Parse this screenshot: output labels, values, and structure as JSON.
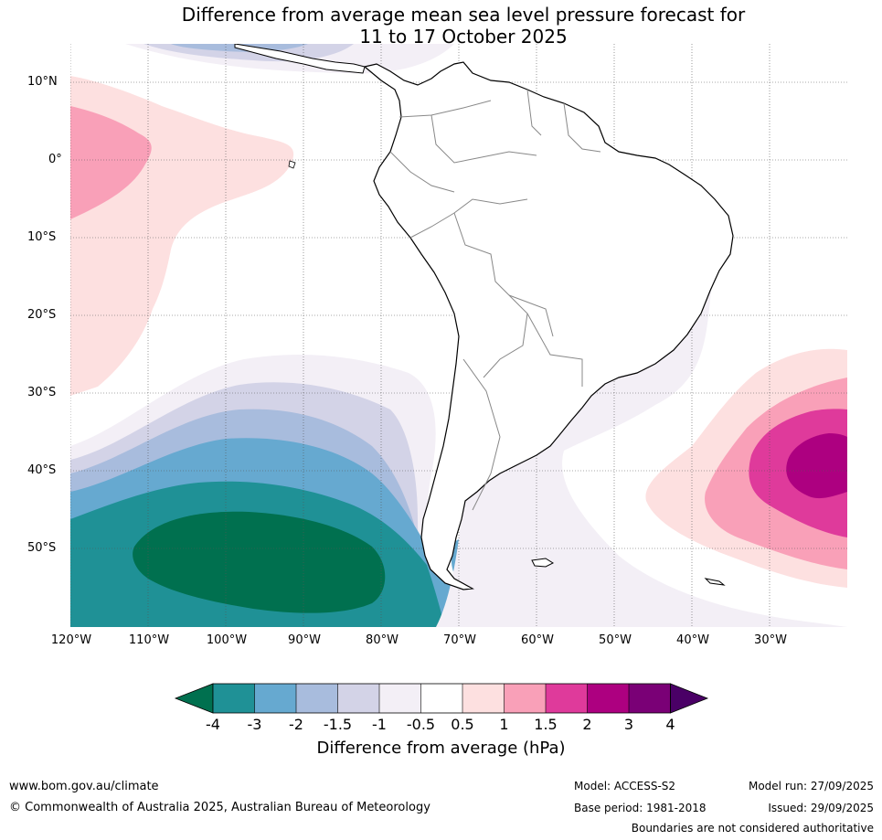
{
  "title": {
    "line1": "Difference from average mean sea level pressure forecast for",
    "line2": "11 to 17 October 2025"
  },
  "map": {
    "region": "South America",
    "lat_labels": [
      "10°N",
      "0°",
      "10°S",
      "20°S",
      "30°S",
      "40°S",
      "50°S"
    ],
    "lon_labels": [
      "120°W",
      "110°W",
      "100°W",
      "90°W",
      "80°W",
      "70°W",
      "60°W",
      "50°W",
      "40°W",
      "30°W"
    ]
  },
  "legend": {
    "ticks": [
      "-4",
      "-3",
      "-2",
      "-1.5",
      "-1",
      "-0.5",
      "0.5",
      "1",
      "1.5",
      "2",
      "3",
      "4"
    ],
    "colors": [
      "#00704f",
      "#1f9196",
      "#66a9d0",
      "#a8bcdd",
      "#d3d3e7",
      "#f3eff6",
      "#ffffff",
      "#fde0e0",
      "#f9a0b8",
      "#df3a9b",
      "#ad0080",
      "#7a0076",
      "#4a0066"
    ],
    "label": "Difference from average (hPa)"
  },
  "footer": {
    "url": "www.bom.gov.au/climate",
    "copyright": "© Commonwealth of Australia 2025, Australian Bureau of Meteorology",
    "model": "Model: ACCESS-S2",
    "base_period": "Base period: 1981-2018",
    "model_run": "Model run: 27/09/2025",
    "issued": "Issued: 29/09/2025",
    "disclaimer": "Boundaries are not considered authoritative"
  }
}
